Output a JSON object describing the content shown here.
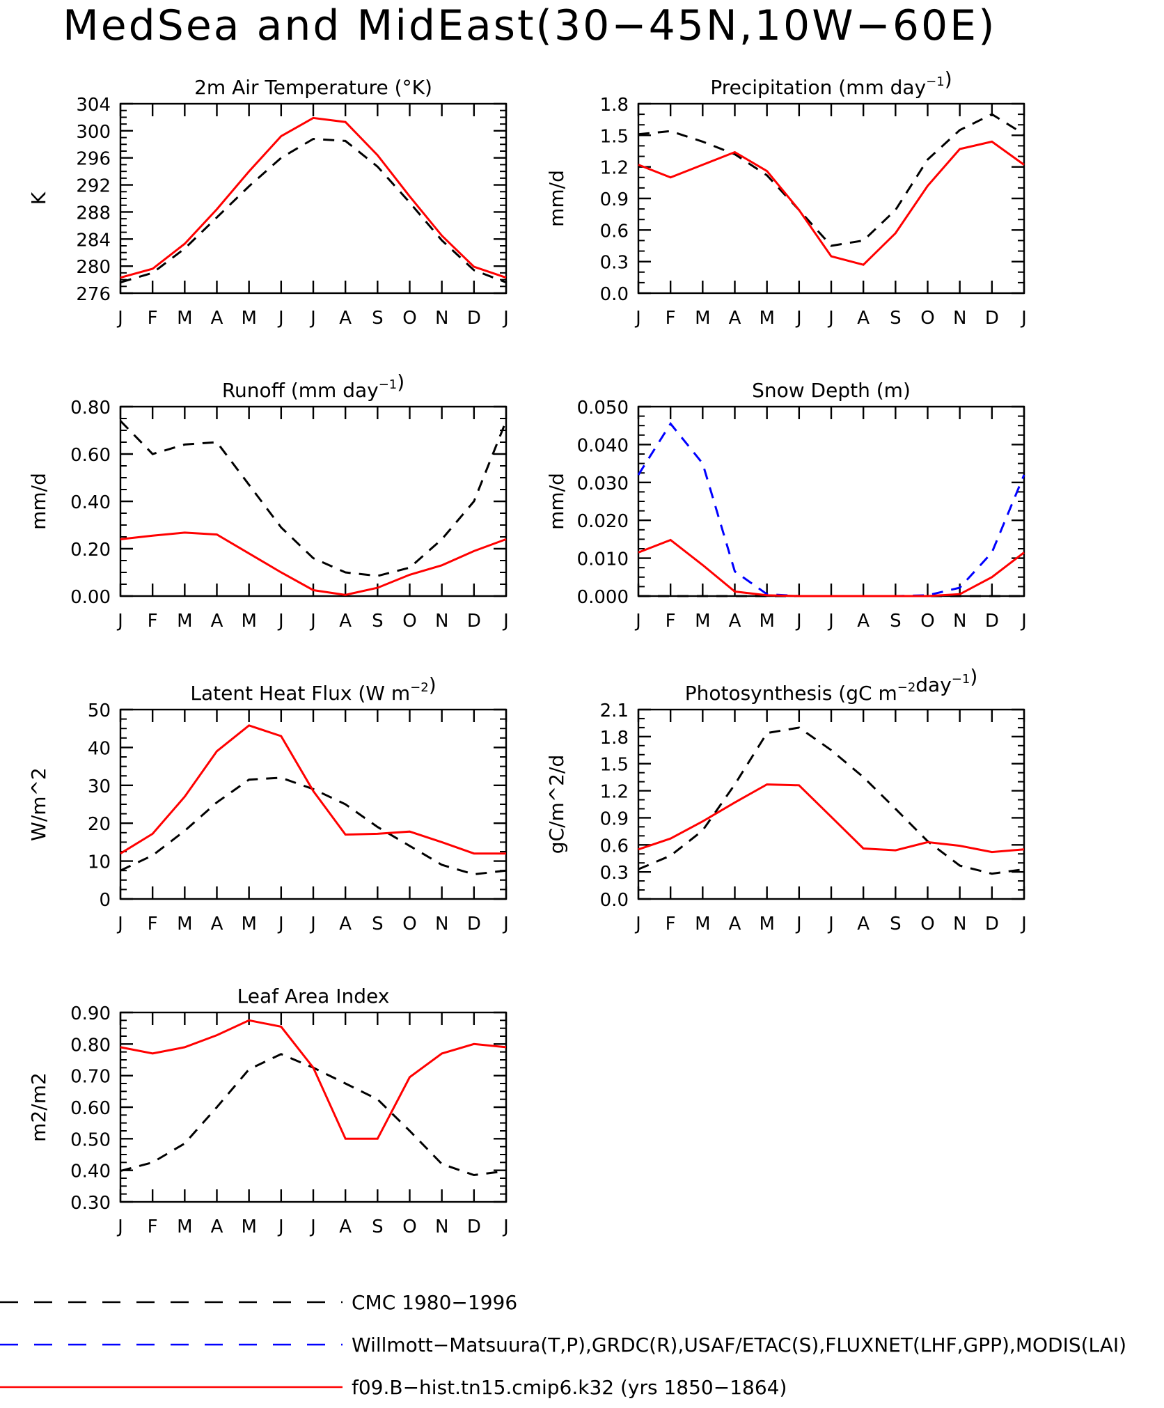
{
  "title": "MedSea and MidEast(30−45N,10W−60E)",
  "colors": {
    "cmc": "#000000",
    "obs": "#0000ff",
    "model": "#ff0000"
  },
  "legend": [
    {
      "label": "CMC 1980−1996",
      "color": "#000000",
      "dash": true
    },
    {
      "label": "Willmott−Matsuura(T,P),GRDC(R),USAF/ETAC(S),FLUXNET(LHF,GPP),MODIS(LAI)",
      "color": "#0000ff",
      "dash": true
    },
    {
      "label": "f09.B−hist.tn15.cmip6.k32 (yrs 1850−1864)",
      "color": "#ff0000",
      "dash": false
    }
  ],
  "chart_data": [
    {
      "id": "air-temperature",
      "type": "line",
      "title": "2m Air Temperature (°K)",
      "title_main": "2m Air Temperature (",
      "title_sup": "",
      "title_end": "°K)",
      "ylabel": "K",
      "ylim": [
        276,
        304
      ],
      "yticks": [
        276,
        280,
        284,
        288,
        292,
        296,
        300,
        304
      ],
      "ydecimals": 0,
      "minor_per_major": 4,
      "categories": [
        "J",
        "F",
        "M",
        "A",
        "M",
        "J",
        "J",
        "A",
        "S",
        "O",
        "N",
        "D",
        "J"
      ],
      "series": [
        {
          "name": "CMC 1980−1996",
          "color": "#000000",
          "dash": true,
          "values": [
            277.6,
            279,
            282.6,
            287.2,
            291.8,
            296,
            298.8,
            298.5,
            294.7,
            289.4,
            283.8,
            279.4,
            277.6
          ]
        },
        {
          "name": "f09.B−hist.tn15.cmip6.k32 (yrs 1850−1864)",
          "color": "#ff0000",
          "dash": false,
          "values": [
            278.3,
            279.6,
            283.3,
            288.4,
            294,
            299.2,
            301.9,
            301.3,
            296.4,
            290.3,
            284.5,
            279.9,
            278.3
          ]
        }
      ]
    },
    {
      "id": "precipitation",
      "type": "line",
      "title": "Precipitation (mm day−1)",
      "title_main": "Precipitation (mm day",
      "title_sup": "−1",
      "title_end": ")",
      "ylabel": "mm/d",
      "ylim": [
        0,
        1.8
      ],
      "yticks": [
        0,
        0.3,
        0.6,
        0.9,
        1.2,
        1.5,
        1.8
      ],
      "ydecimals": 1,
      "minor_per_major": 3,
      "categories": [
        "J",
        "F",
        "M",
        "A",
        "M",
        "J",
        "J",
        "A",
        "S",
        "O",
        "N",
        "D",
        "J"
      ],
      "series": [
        {
          "name": "CMC 1980−1996",
          "color": "#000000",
          "dash": true,
          "values": [
            1.51,
            1.54,
            1.44,
            1.32,
            1.12,
            0.79,
            0.45,
            0.5,
            0.79,
            1.27,
            1.55,
            1.7,
            1.51
          ]
        },
        {
          "name": "f09.B−hist.tn15.cmip6.k32 (yrs 1850−1864)",
          "color": "#ff0000",
          "dash": false,
          "values": [
            1.22,
            1.1,
            1.22,
            1.34,
            1.16,
            0.79,
            0.35,
            0.27,
            0.57,
            1.02,
            1.37,
            1.44,
            1.22
          ]
        }
      ]
    },
    {
      "id": "runoff",
      "type": "line",
      "title": "Runoff (mm day−1)",
      "title_main": "Runoff (mm day",
      "title_sup": "−1",
      "title_end": ")",
      "ylabel": "mm/d",
      "ylim": [
        0,
        0.8
      ],
      "yticks": [
        0,
        0.2,
        0.4,
        0.6,
        0.8
      ],
      "ydecimals": 2,
      "minor_per_major": 4,
      "categories": [
        "J",
        "F",
        "M",
        "A",
        "M",
        "J",
        "J",
        "A",
        "S",
        "O",
        "N",
        "D",
        "J"
      ],
      "series": [
        {
          "name": "CMC 1980−1996",
          "color": "#000000",
          "dash": true,
          "values": [
            0.74,
            0.6,
            0.64,
            0.65,
            0.47,
            0.29,
            0.16,
            0.1,
            0.085,
            0.12,
            0.24,
            0.4,
            0.74
          ]
        },
        {
          "name": "f09.B−hist.tn15.cmip6.k32 (yrs 1850−1864)",
          "color": "#ff0000",
          "dash": false,
          "values": [
            0.24,
            0.255,
            0.268,
            0.26,
            0.18,
            0.1,
            0.025,
            0.005,
            0.035,
            0.09,
            0.13,
            0.19,
            0.24
          ]
        }
      ]
    },
    {
      "id": "snow-depth",
      "type": "line",
      "title": "Snow Depth (m)",
      "title_main": "Snow Depth (m)",
      "title_sup": "",
      "title_end": "",
      "ylabel": "mm/d",
      "ylim": [
        0,
        0.05
      ],
      "yticks": [
        0,
        0.01,
        0.02,
        0.03,
        0.04,
        0.05
      ],
      "ydecimals": 3,
      "minor_per_major": 4,
      "categories": [
        "J",
        "F",
        "M",
        "A",
        "M",
        "J",
        "J",
        "A",
        "S",
        "O",
        "N",
        "D",
        "J"
      ],
      "series": [
        {
          "name": "CMC 1980−1996",
          "color": "#000000",
          "dash": true,
          "values": [
            0,
            0,
            0,
            0,
            0,
            0,
            0,
            0,
            0,
            0,
            0,
            0,
            0
          ]
        },
        {
          "name": "Willmott−Matsuura(T,P),GRDC(R),USAF/ETAC(S),FLUXNET(LHF,GPP),MODIS(LAI)",
          "color": "#0000ff",
          "dash": true,
          "values": [
            0.032,
            0.0455,
            0.035,
            0.0065,
            0.0005,
            0,
            0,
            0,
            0,
            0.0002,
            0.0022,
            0.0115,
            0.032
          ]
        },
        {
          "name": "f09.B−hist.tn15.cmip6.k32 (yrs 1850−1864)",
          "color": "#ff0000",
          "dash": false,
          "values": [
            0.0115,
            0.0148,
            0.0082,
            0.0012,
            0.0002,
            0,
            0,
            0,
            0,
            0,
            0.0005,
            0.005,
            0.0115
          ]
        }
      ]
    },
    {
      "id": "latent-heat-flux",
      "type": "line",
      "title": "Latent Heat Flux (W m−2)",
      "title_main": "Latent Heat Flux (W m",
      "title_sup": "−2",
      "title_end": ")",
      "ylabel": "W/m^2",
      "ylim": [
        0,
        50
      ],
      "yticks": [
        0,
        10,
        20,
        30,
        40,
        50
      ],
      "ydecimals": 0,
      "minor_per_major": 4,
      "categories": [
        "J",
        "F",
        "M",
        "A",
        "M",
        "J",
        "J",
        "A",
        "S",
        "O",
        "N",
        "D",
        "J"
      ],
      "series": [
        {
          "name": "CMC 1980−1996",
          "color": "#000000",
          "dash": true,
          "values": [
            7.5,
            11.5,
            18,
            25.5,
            31.5,
            32,
            29,
            25,
            19,
            14,
            9,
            6.5,
            7.5
          ]
        },
        {
          "name": "f09.B−hist.tn15.cmip6.k32 (yrs 1850−1864)",
          "color": "#ff0000",
          "dash": false,
          "values": [
            12,
            17.2,
            27,
            39,
            45.8,
            43,
            28.5,
            17,
            17.2,
            17.8,
            15,
            12,
            12
          ]
        }
      ]
    },
    {
      "id": "photosynthesis",
      "type": "line",
      "title": "Photosynthesis (gC m−2day−1)",
      "title_main": "Photosynthesis (gC m",
      "title_sup": "−2",
      "title_end": "day",
      "title_sup2": "−1",
      "title_end2": ")",
      "ylabel": "gC/m^2/d",
      "ylim": [
        0,
        2.1
      ],
      "yticks": [
        0,
        0.3,
        0.6,
        0.9,
        1.2,
        1.5,
        1.8,
        2.1
      ],
      "ydecimals": 1,
      "minor_per_major": 3,
      "categories": [
        "J",
        "F",
        "M",
        "A",
        "M",
        "J",
        "J",
        "A",
        "S",
        "O",
        "N",
        "D",
        "J"
      ],
      "series": [
        {
          "name": "CMC 1980−1996",
          "color": "#000000",
          "dash": true,
          "values": [
            0.33,
            0.48,
            0.76,
            1.27,
            1.84,
            1.9,
            1.65,
            1.35,
            1.0,
            0.64,
            0.37,
            0.28,
            0.33
          ]
        },
        {
          "name": "f09.B−hist.tn15.cmip6.k32 (yrs 1850−1864)",
          "color": "#ff0000",
          "dash": false,
          "values": [
            0.55,
            0.67,
            0.86,
            1.07,
            1.27,
            1.26,
            0.91,
            0.56,
            0.54,
            0.63,
            0.59,
            0.52,
            0.55
          ]
        }
      ]
    },
    {
      "id": "leaf-area-index",
      "type": "line",
      "title": "Leaf Area Index",
      "title_main": "Leaf Area Index",
      "title_sup": "",
      "title_end": "",
      "ylabel": "m2/m2",
      "ylim": [
        0.3,
        0.9
      ],
      "yticks": [
        0.3,
        0.4,
        0.5,
        0.6,
        0.7,
        0.8,
        0.9
      ],
      "ydecimals": 2,
      "minor_per_major": 4,
      "categories": [
        "J",
        "F",
        "M",
        "A",
        "M",
        "J",
        "J",
        "A",
        "S",
        "O",
        "N",
        "D",
        "J"
      ],
      "series": [
        {
          "name": "CMC 1980−1996",
          "color": "#000000",
          "dash": true,
          "values": [
            0.398,
            0.425,
            0.485,
            0.6,
            0.72,
            0.768,
            0.725,
            0.675,
            0.625,
            0.525,
            0.42,
            0.385,
            0.398
          ]
        },
        {
          "name": "f09.B−hist.tn15.cmip6.k32 (yrs 1850−1864)",
          "color": "#ff0000",
          "dash": false,
          "values": [
            0.79,
            0.77,
            0.79,
            0.828,
            0.875,
            0.855,
            0.725,
            0.5,
            0.5,
            0.695,
            0.77,
            0.8,
            0.79
          ]
        }
      ]
    }
  ]
}
